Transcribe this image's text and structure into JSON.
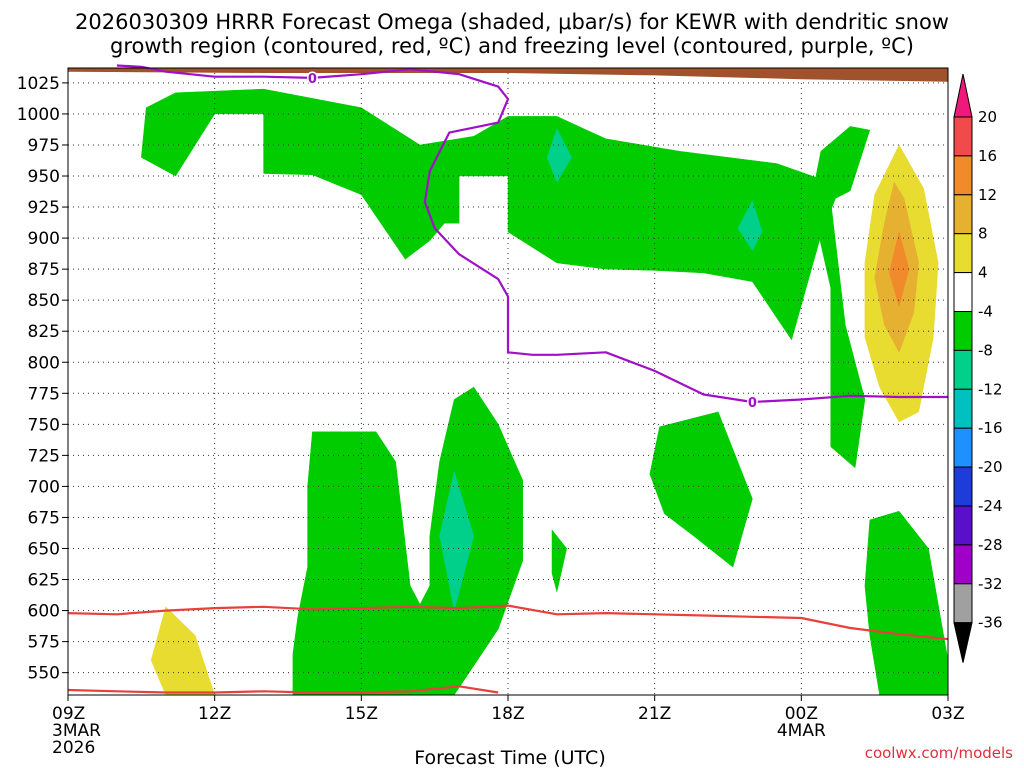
{
  "chart_data": {
    "type": "heatmap",
    "title_line1": "2026030309 HRRR Forecast Omega (shaded, μbar/s) for KEWR with dendritic snow",
    "title_line2": "growth region (contoured, red, ºC) and freezing level (contoured, purple, ºC)",
    "xlabel": "Forecast Time (UTC)",
    "credit": "coolwx.com/models",
    "x_range": [
      0,
      18
    ],
    "x_ticks": [
      {
        "x": 0,
        "line1": "09Z",
        "line2": "3MAR",
        "line3": "2026"
      },
      {
        "x": 3,
        "line1": "12Z",
        "line2": "",
        "line3": ""
      },
      {
        "x": 6,
        "line1": "15Z",
        "line2": "",
        "line3": ""
      },
      {
        "x": 9,
        "line1": "18Z",
        "line2": "",
        "line3": ""
      },
      {
        "x": 12,
        "line1": "21Z",
        "line2": "",
        "line3": ""
      },
      {
        "x": 15,
        "line1": "00Z",
        "line2": "4MAR",
        "line3": ""
      },
      {
        "x": 18,
        "line1": "03Z",
        "line2": "",
        "line3": ""
      }
    ],
    "y_range_hpa": [
      1037,
      532
    ],
    "y_ticks": [
      550,
      575,
      600,
      625,
      650,
      675,
      700,
      725,
      750,
      775,
      800,
      825,
      850,
      875,
      900,
      925,
      950,
      975,
      1000,
      1025
    ],
    "colorbar": {
      "labels": [
        "20",
        "16",
        "12",
        "8",
        "4",
        "-4",
        "-8",
        "-12",
        "-16",
        "-20",
        "-24",
        "-28",
        "-32",
        "-36"
      ],
      "bins": [
        {
          "from": 16,
          "to": 20,
          "color": "#f04a4a"
        },
        {
          "from": 12,
          "to": 16,
          "color": "#f08a2a"
        },
        {
          "from": 8,
          "to": 12,
          "color": "#e6b030"
        },
        {
          "from": 4,
          "to": 8,
          "color": "#e8dc30"
        },
        {
          "from": -4,
          "to": 4,
          "color": "#ffffff"
        },
        {
          "from": -8,
          "to": -4,
          "color": "#00cc00"
        },
        {
          "from": -12,
          "to": -8,
          "color": "#00d08a"
        },
        {
          "from": -16,
          "to": -12,
          "color": "#00c0c0"
        },
        {
          "from": -20,
          "to": -16,
          "color": "#1e90ff"
        },
        {
          "from": -24,
          "to": -20,
          "color": "#1e3cd8"
        },
        {
          "from": -28,
          "to": -24,
          "color": "#5a10c8"
        },
        {
          "from": -32,
          "to": -28,
          "color": "#a000c8"
        },
        {
          "from": -36,
          "to": -32,
          "color": "#a0a0a0"
        }
      ],
      "top_arrow_color": "#f0187a",
      "bottom_arrow_color": "#000000"
    },
    "dendritic_zone_contours": [
      {
        "name": "dgz-bottom",
        "color": "#e8403a",
        "points": [
          [
            0,
            598
          ],
          [
            1,
            597
          ],
          [
            2,
            600
          ],
          [
            3,
            602
          ],
          [
            4,
            603
          ],
          [
            5,
            601
          ],
          [
            6,
            602
          ],
          [
            7,
            603
          ],
          [
            8,
            602
          ],
          [
            9,
            604
          ],
          [
            10,
            597
          ],
          [
            11,
            598
          ],
          [
            12,
            597
          ],
          [
            13,
            596
          ],
          [
            14,
            595
          ],
          [
            15,
            594
          ],
          [
            16,
            586
          ],
          [
            17,
            581
          ],
          [
            18,
            577
          ]
        ]
      },
      {
        "name": "dgz-top",
        "color": "#e8403a",
        "points": [
          [
            0,
            536
          ],
          [
            1,
            535
          ],
          [
            2,
            534
          ],
          [
            3,
            534
          ],
          [
            4,
            535
          ],
          [
            5,
            534
          ],
          [
            6,
            534
          ],
          [
            7,
            535
          ],
          [
            8,
            539
          ],
          [
            8.8,
            534
          ]
        ]
      }
    ],
    "freezing_level": {
      "color": "#a010c8",
      "label": "0",
      "label_x": [
        5.0,
        14.0
      ],
      "points": [
        [
          1,
          1039
        ],
        [
          1.5,
          1038
        ],
        [
          2,
          1034
        ],
        [
          3,
          1030
        ],
        [
          4,
          1030
        ],
        [
          5,
          1029
        ],
        [
          6,
          1032
        ],
        [
          7,
          1036
        ],
        [
          8,
          1032
        ],
        [
          8.8,
          1022
        ],
        [
          9,
          1012
        ],
        [
          8.8,
          993
        ],
        [
          7.8,
          985
        ],
        [
          7.4,
          954
        ],
        [
          7.3,
          929
        ],
        [
          7.5,
          908
        ],
        [
          8,
          887
        ],
        [
          8.8,
          867
        ],
        [
          9,
          853
        ],
        [
          9,
          808
        ],
        [
          9.5,
          806
        ],
        [
          10,
          806
        ],
        [
          11,
          808
        ],
        [
          12,
          793
        ],
        [
          13,
          774
        ],
        [
          14,
          768
        ],
        [
          15,
          770
        ],
        [
          16,
          773
        ],
        [
          17,
          772
        ],
        [
          18,
          772
        ]
      ]
    },
    "terrain": {
      "color": "#a0522d",
      "surface_points": [
        [
          0,
          1034
        ],
        [
          4,
          1033
        ],
        [
          9,
          1033
        ],
        [
          12,
          1031
        ],
        [
          15,
          1028
        ],
        [
          18,
          1026
        ]
      ]
    },
    "shaded_regions": [
      {
        "label": "-4 to -8",
        "color": "#00cc00",
        "points": [
          [
            5,
            532
          ],
          [
            7.9,
            532
          ],
          [
            8.8,
            585
          ],
          [
            9.3,
            640
          ],
          [
            9.3,
            705
          ],
          [
            8.8,
            750
          ],
          [
            8.3,
            780
          ],
          [
            7.9,
            770
          ],
          [
            7.6,
            720
          ],
          [
            7.4,
            660
          ],
          [
            7.4,
            620
          ],
          [
            7.2,
            605
          ],
          [
            7.0,
            620
          ],
          [
            6.7,
            720
          ],
          [
            6.3,
            744
          ],
          [
            5.0,
            744
          ],
          [
            4.9,
            700
          ],
          [
            4.9,
            635
          ],
          [
            4.7,
            595
          ],
          [
            4.6,
            565
          ],
          [
            4.6,
            532
          ]
        ]
      },
      {
        "label": "-4 to -8",
        "color": "#00cc00",
        "points": [
          [
            10.0,
            615
          ],
          [
            10.2,
            650
          ],
          [
            9.9,
            665
          ],
          [
            9.9,
            630
          ]
        ]
      },
      {
        "label": "-4 to -8",
        "color": "#00cc00",
        "points": [
          [
            12.2,
            678
          ],
          [
            12.8,
            660
          ],
          [
            13.6,
            635
          ],
          [
            14.0,
            690
          ],
          [
            13.3,
            760
          ],
          [
            12.1,
            748
          ],
          [
            11.9,
            710
          ]
        ]
      },
      {
        "label": "-4 to -8",
        "color": "#00cc00",
        "points": [
          [
            16.6,
            532
          ],
          [
            18,
            532
          ],
          [
            18,
            560
          ],
          [
            17.6,
            650
          ],
          [
            17.0,
            680
          ],
          [
            16.4,
            673
          ],
          [
            16.3,
            620
          ],
          [
            16.4,
            580
          ]
        ]
      },
      {
        "label": "-4 to -8",
        "color": "#00cc00",
        "points": [
          [
            15.6,
            732
          ],
          [
            16.1,
            715
          ],
          [
            16.3,
            770
          ],
          [
            15.9,
            830
          ],
          [
            15.6,
            930
          ],
          [
            16.0,
            938
          ],
          [
            16.4,
            987
          ],
          [
            16.0,
            990
          ],
          [
            15.4,
            970
          ],
          [
            15.2,
            930
          ],
          [
            15.6,
            860
          ]
        ]
      },
      {
        "label": "-4 to -8",
        "color": "#00cc00",
        "points": [
          [
            1.5,
            965
          ],
          [
            2.2,
            950
          ],
          [
            3.0,
            1000
          ],
          [
            4.0,
            1000
          ],
          [
            4.0,
            952
          ],
          [
            5.0,
            951
          ],
          [
            6.0,
            935
          ],
          [
            6.9,
            883
          ],
          [
            7.4,
            898
          ],
          [
            7.7,
            912
          ],
          [
            8.0,
            912
          ],
          [
            8.0,
            950
          ],
          [
            9.0,
            950
          ],
          [
            9.0,
            905
          ],
          [
            10.0,
            880
          ],
          [
            11.0,
            875
          ],
          [
            12.0,
            874
          ],
          [
            13.0,
            872
          ],
          [
            14.0,
            865
          ],
          [
            14.8,
            818
          ],
          [
            15.4,
            902
          ],
          [
            15.8,
            942
          ],
          [
            14.5,
            960
          ],
          [
            12.5,
            970
          ],
          [
            11.0,
            980
          ],
          [
            10.0,
            998
          ],
          [
            9.0,
            998
          ],
          [
            8.3,
            982
          ],
          [
            7.2,
            975
          ],
          [
            6.0,
            1005
          ],
          [
            4.0,
            1020
          ],
          [
            2.2,
            1017
          ],
          [
            1.6,
            1005
          ]
        ]
      },
      {
        "label": "4 to 8",
        "color": "#e8dc30",
        "points": [
          [
            2.0,
            532
          ],
          [
            3.0,
            532
          ],
          [
            2.6,
            580
          ],
          [
            2.0,
            603
          ],
          [
            1.7,
            560
          ]
        ]
      },
      {
        "label": "4 to 8",
        "color": "#e8dc30",
        "points": [
          [
            17.0,
            752
          ],
          [
            17.4,
            760
          ],
          [
            17.7,
            820
          ],
          [
            17.8,
            880
          ],
          [
            17.5,
            940
          ],
          [
            17.0,
            975
          ],
          [
            16.5,
            935
          ],
          [
            16.3,
            880
          ],
          [
            16.3,
            820
          ],
          [
            16.6,
            780
          ]
        ]
      },
      {
        "label": "8 to 12",
        "color": "#e6b030",
        "points": [
          [
            17.0,
            808
          ],
          [
            17.3,
            840
          ],
          [
            17.4,
            880
          ],
          [
            17.1,
            932
          ],
          [
            16.9,
            945
          ],
          [
            16.7,
            912
          ],
          [
            16.5,
            868
          ],
          [
            16.7,
            830
          ]
        ]
      },
      {
        "label": "12 to 16",
        "color": "#f08a2a",
        "points": [
          [
            17.0,
            845
          ],
          [
            17.2,
            875
          ],
          [
            17.0,
            905
          ],
          [
            16.8,
            872
          ]
        ]
      },
      {
        "label": "-8 to -12",
        "color": "#00d08a",
        "points": [
          [
            7.9,
            600
          ],
          [
            8.3,
            660
          ],
          [
            7.9,
            712
          ],
          [
            7.6,
            660
          ]
        ]
      },
      {
        "label": "-8 to -12",
        "color": "#00d08a",
        "points": [
          [
            10.0,
            945
          ],
          [
            10.3,
            965
          ],
          [
            10.0,
            988
          ],
          [
            9.8,
            965
          ]
        ]
      },
      {
        "label": "-8 to -12",
        "color": "#00d08a",
        "points": [
          [
            14.0,
            890
          ],
          [
            14.2,
            905
          ],
          [
            14.0,
            930
          ],
          [
            13.7,
            908
          ]
        ]
      }
    ]
  }
}
